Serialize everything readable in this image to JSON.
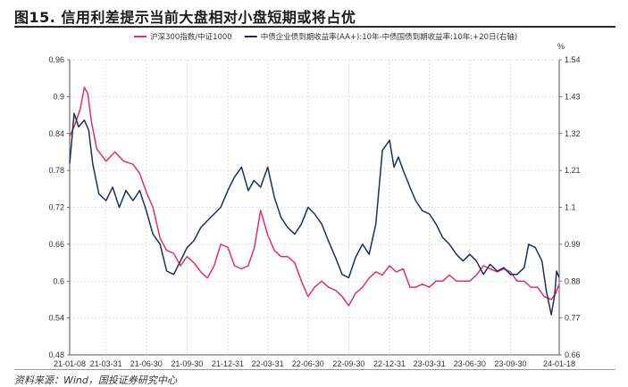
{
  "figure": {
    "title": "图15. 信用利差提示当前大盘相对小盘短期或将占优",
    "source": "资料来源：Wind，国投证券研究中心"
  },
  "chart_data": {
    "type": "line",
    "title": "",
    "xlabel": "",
    "ylabel_left": "",
    "ylabel_right": "%",
    "x_ticks": [
      "21-01-08",
      "21-03-31",
      "21-06-30",
      "21-09-30",
      "21-12-31",
      "22-03-31",
      "22-06-30",
      "22-09-30",
      "22-12-31",
      "23-03-31",
      "23-06-30",
      "23-09-30",
      "24-01-18"
    ],
    "ylim_left": [
      0.48,
      0.96
    ],
    "yticks_left": [
      "0.48",
      "0.54",
      "0.6",
      "0.66",
      "0.72",
      "0.78",
      "0.84",
      "0.9",
      "0.96"
    ],
    "ylim_right": [
      0.66,
      1.54
    ],
    "yticks_right": [
      "0.66",
      "0.77",
      "0.88",
      "0.99",
      "1.1",
      "1.21",
      "1.32",
      "1.43",
      "1.54"
    ],
    "grid": true,
    "legend_position": "top",
    "colors": {
      "series1": "#e0306a",
      "series2": "#1b2f5e"
    },
    "series": [
      {
        "name": "沪深300指数/中证1000",
        "axis": "left",
        "points": [
          [
            "21-01-08",
            0.835
          ],
          [
            "21-01-20",
            0.855
          ],
          [
            "21-02-01",
            0.88
          ],
          [
            "21-02-10",
            0.915
          ],
          [
            "21-02-18",
            0.905
          ],
          [
            "21-02-26",
            0.86
          ],
          [
            "21-03-10",
            0.815
          ],
          [
            "21-03-31",
            0.795
          ],
          [
            "21-04-20",
            0.81
          ],
          [
            "21-05-10",
            0.795
          ],
          [
            "21-05-31",
            0.79
          ],
          [
            "21-06-15",
            0.775
          ],
          [
            "21-06-30",
            0.745
          ],
          [
            "21-07-15",
            0.72
          ],
          [
            "21-07-31",
            0.67
          ],
          [
            "21-08-15",
            0.65
          ],
          [
            "21-08-31",
            0.645
          ],
          [
            "21-09-15",
            0.625
          ],
          [
            "21-09-30",
            0.64
          ],
          [
            "21-10-15",
            0.63
          ],
          [
            "21-10-31",
            0.615
          ],
          [
            "21-11-15",
            0.605
          ],
          [
            "21-11-30",
            0.625
          ],
          [
            "21-12-15",
            0.66
          ],
          [
            "21-12-31",
            0.655
          ],
          [
            "22-01-15",
            0.625
          ],
          [
            "22-01-31",
            0.62
          ],
          [
            "22-02-15",
            0.625
          ],
          [
            "22-03-01",
            0.655
          ],
          [
            "22-03-15",
            0.715
          ],
          [
            "22-03-31",
            0.675
          ],
          [
            "22-04-15",
            0.65
          ],
          [
            "22-04-30",
            0.64
          ],
          [
            "22-05-15",
            0.64
          ],
          [
            "22-05-31",
            0.63
          ],
          [
            "22-06-15",
            0.6
          ],
          [
            "22-06-30",
            0.575
          ],
          [
            "22-07-15",
            0.59
          ],
          [
            "22-07-31",
            0.6
          ],
          [
            "22-08-15",
            0.59
          ],
          [
            "22-08-31",
            0.585
          ],
          [
            "22-09-15",
            0.575
          ],
          [
            "22-09-30",
            0.56
          ],
          [
            "22-10-15",
            0.58
          ],
          [
            "22-10-31",
            0.59
          ],
          [
            "22-11-15",
            0.605
          ],
          [
            "22-11-30",
            0.615
          ],
          [
            "22-12-15",
            0.61
          ],
          [
            "22-12-31",
            0.625
          ],
          [
            "23-01-15",
            0.615
          ],
          [
            "23-01-31",
            0.62
          ],
          [
            "23-02-15",
            0.59
          ],
          [
            "23-02-28",
            0.59
          ],
          [
            "23-03-15",
            0.595
          ],
          [
            "23-03-31",
            0.59
          ],
          [
            "23-04-15",
            0.6
          ],
          [
            "23-04-30",
            0.6
          ],
          [
            "23-05-15",
            0.61
          ],
          [
            "23-05-31",
            0.6
          ],
          [
            "23-06-15",
            0.6
          ],
          [
            "23-06-30",
            0.6
          ],
          [
            "23-07-15",
            0.61
          ],
          [
            "23-07-31",
            0.625
          ],
          [
            "23-08-15",
            0.62
          ],
          [
            "23-08-31",
            0.615
          ],
          [
            "23-09-15",
            0.62
          ],
          [
            "23-09-30",
            0.615
          ],
          [
            "23-10-15",
            0.6
          ],
          [
            "23-10-31",
            0.6
          ],
          [
            "23-11-15",
            0.59
          ],
          [
            "23-11-30",
            0.59
          ],
          [
            "23-12-15",
            0.575
          ],
          [
            "23-12-31",
            0.57
          ],
          [
            "24-01-10",
            0.58
          ],
          [
            "24-01-18",
            0.595
          ]
        ]
      },
      {
        "name": "中债企业债到期收益率(AA+):10年-中债国债到期收益率:10年:+20日(右轴)",
        "axis": "right",
        "points": [
          [
            "21-01-08",
            1.23
          ],
          [
            "21-01-18",
            1.38
          ],
          [
            "21-01-28",
            1.34
          ],
          [
            "21-02-10",
            1.36
          ],
          [
            "21-02-20",
            1.33
          ],
          [
            "21-03-01",
            1.23
          ],
          [
            "21-03-15",
            1.14
          ],
          [
            "21-03-31",
            1.12
          ],
          [
            "21-04-15",
            1.16
          ],
          [
            "21-04-30",
            1.1
          ],
          [
            "21-05-15",
            1.15
          ],
          [
            "21-05-31",
            1.12
          ],
          [
            "21-06-15",
            1.15
          ],
          [
            "21-06-30",
            1.09
          ],
          [
            "21-07-15",
            1.02
          ],
          [
            "21-07-31",
            0.99
          ],
          [
            "21-08-15",
            0.91
          ],
          [
            "21-08-31",
            0.9
          ],
          [
            "21-09-15",
            0.94
          ],
          [
            "21-09-30",
            0.98
          ],
          [
            "21-10-15",
            1.0
          ],
          [
            "21-10-31",
            1.04
          ],
          [
            "21-11-15",
            1.06
          ],
          [
            "21-11-30",
            1.08
          ],
          [
            "21-12-15",
            1.1
          ],
          [
            "21-12-31",
            1.15
          ],
          [
            "22-01-15",
            1.19
          ],
          [
            "22-01-31",
            1.22
          ],
          [
            "22-02-15",
            1.15
          ],
          [
            "22-02-28",
            1.18
          ],
          [
            "22-03-15",
            1.16
          ],
          [
            "22-03-31",
            1.22
          ],
          [
            "22-04-15",
            1.13
          ],
          [
            "22-04-30",
            1.07
          ],
          [
            "22-05-15",
            1.04
          ],
          [
            "22-05-31",
            1.02
          ],
          [
            "22-06-15",
            1.05
          ],
          [
            "22-06-30",
            1.1
          ],
          [
            "22-07-15",
            1.08
          ],
          [
            "22-07-31",
            1.05
          ],
          [
            "22-08-15",
            1.0
          ],
          [
            "22-08-31",
            0.95
          ],
          [
            "22-09-15",
            0.9
          ],
          [
            "22-09-30",
            0.89
          ],
          [
            "22-10-15",
            0.95
          ],
          [
            "22-10-31",
            0.99
          ],
          [
            "22-11-15",
            0.96
          ],
          [
            "22-11-30",
            1.05
          ],
          [
            "22-12-15",
            1.27
          ],
          [
            "22-12-31",
            1.3
          ],
          [
            "23-01-10",
            1.22
          ],
          [
            "23-01-20",
            1.25
          ],
          [
            "23-01-31",
            1.21
          ],
          [
            "23-02-15",
            1.16
          ],
          [
            "23-02-28",
            1.12
          ],
          [
            "23-03-15",
            1.09
          ],
          [
            "23-03-31",
            1.08
          ],
          [
            "23-04-15",
            1.05
          ],
          [
            "23-04-30",
            1.01
          ],
          [
            "23-05-15",
            0.99
          ],
          [
            "23-05-31",
            0.96
          ],
          [
            "23-06-15",
            0.94
          ],
          [
            "23-06-30",
            0.96
          ],
          [
            "23-07-15",
            0.94
          ],
          [
            "23-07-31",
            0.9
          ],
          [
            "23-08-15",
            0.93
          ],
          [
            "23-08-31",
            0.91
          ],
          [
            "23-09-15",
            0.92
          ],
          [
            "23-09-30",
            0.9
          ],
          [
            "23-10-15",
            0.9
          ],
          [
            "23-10-31",
            0.92
          ],
          [
            "23-11-10",
            0.99
          ],
          [
            "23-11-25",
            0.98
          ],
          [
            "23-12-10",
            0.94
          ],
          [
            "23-12-20",
            0.85
          ],
          [
            "23-12-31",
            0.78
          ],
          [
            "24-01-08",
            0.84
          ],
          [
            "24-01-12",
            0.91
          ],
          [
            "24-01-18",
            0.89
          ]
        ]
      }
    ]
  }
}
